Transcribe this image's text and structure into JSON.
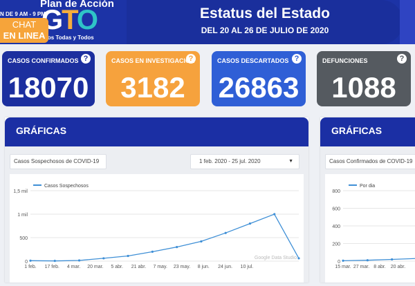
{
  "header": {
    "chat_hours": "N DE 9 AM - 9 PM",
    "chat_line1": "CHAT",
    "chat_line2": "EN LINEA",
    "logo_top": "Plan de Acción",
    "logo_g": "G",
    "logo_t": "T",
    "logo_o": "O",
    "logo_tagline": "dándonos Todas y Todos",
    "title": "Estatus del Estado",
    "subtitle": "DEL 20 AL 26 DE JULIO DE 2020"
  },
  "cards": [
    {
      "label": "CASOS CONFIRMADOS",
      "value": "18070",
      "help": "?"
    },
    {
      "label": "CASOS EN INVESTIGACIÓN",
      "value": "3182",
      "help": "?"
    },
    {
      "label": "CASOS DESCARTADOS",
      "value": "26863",
      "help": "?"
    },
    {
      "label": "DEFUNCIONES",
      "value": "1088",
      "help": "?"
    }
  ],
  "panels": [
    {
      "heading": "GRÁFICAS",
      "metric_select": "Casos Sospechosos de COVID-19",
      "date_select": "1 feb. 2020 - 25 jul. 2020",
      "watermark": "Google Data Studio"
    },
    {
      "heading": "GRÁFICAS",
      "metric_select": "Casos Confirmados de COVID-19"
    }
  ],
  "chart_data": [
    {
      "type": "line",
      "series": [
        {
          "name": "Casos Sospechosos",
          "color": "#3e8fd6",
          "x": [
            "1 feb.",
            "17 feb.",
            "4 mar.",
            "20 mar.",
            "5 abr.",
            "21 abr.",
            "7 may.",
            "23 may.",
            "8 jun.",
            "24 jun.",
            "10 jul.",
            "25 jul."
          ],
          "values": [
            10,
            5,
            15,
            60,
            110,
            200,
            300,
            420,
            600,
            800,
            1000,
            60
          ]
        }
      ],
      "x_tick_labels": [
        "1 feb.",
        "17 feb.",
        "4 mar.",
        "20 mar.",
        "5 abr.",
        "21 abr.",
        "7 may.",
        "23 may.",
        "8 jun.",
        "24 jun.",
        "10 jul."
      ],
      "y_tick_labels": [
        "0",
        "500",
        "1 mil",
        "1,5 mil"
      ],
      "ylim": [
        0,
        1500
      ],
      "grid": true,
      "legend": "top-left"
    },
    {
      "type": "line",
      "series": [
        {
          "name": "Por dia",
          "color": "#3e8fd6",
          "x": [
            "15 mar.",
            "27 mar.",
            "8 abr.",
            "20 abr."
          ],
          "values": [
            5,
            10,
            20,
            30
          ]
        }
      ],
      "x_tick_labels": [
        "15 mar.",
        "27 mar.",
        "8 abr.",
        "20 abr."
      ],
      "y_tick_labels": [
        "0",
        "200",
        "400",
        "600",
        "800"
      ],
      "ylim": [
        0,
        800
      ],
      "grid": true,
      "legend": "top-left"
    }
  ]
}
